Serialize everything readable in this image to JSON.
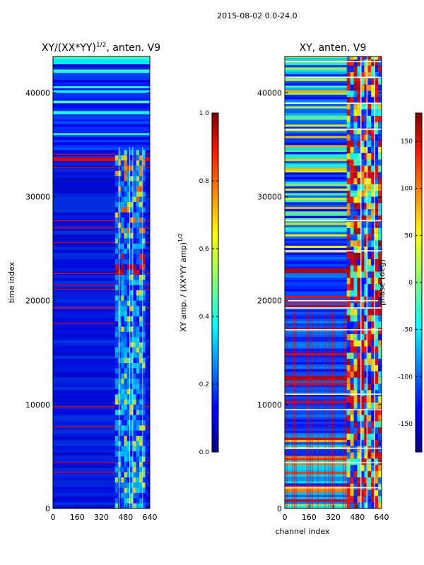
{
  "figure": {
    "suptitle": "2015-08-02 0.0-24.0"
  },
  "chart_data": [
    {
      "type": "heatmap",
      "title_main": "XY/(XX*YY)",
      "title_sup": "1/2",
      "title_suffix": ", anten. V9",
      "xlabel": "",
      "ylabel": "time index",
      "xlim": [
        0,
        640
      ],
      "ylim": [
        0,
        43500
      ],
      "xticks": [
        "0",
        "160",
        "320",
        "480",
        "640"
      ],
      "yticks": [
        "0",
        "10000",
        "20000",
        "30000",
        "40000"
      ],
      "colorbar": {
        "label_main": "XY amp. / (XX*YY amp)",
        "label_sup": "1/2",
        "range": [
          0.0,
          1.0
        ],
        "ticks": [
          "0.0",
          "0.2",
          "0.4",
          "0.6",
          "0.8",
          "1.0"
        ]
      },
      "dominant_value": 0.08,
      "high_rows": [
        3500,
        4400,
        7900,
        9800,
        17800,
        19300,
        21100,
        21500,
        22600,
        25600,
        27000,
        27700,
        32800,
        33600,
        34100
      ],
      "cyan_rows": [
        36000,
        38000,
        40500,
        42000
      ],
      "active_channels": [
        410,
        610
      ]
    },
    {
      "type": "heatmap",
      "title": "XY, anten. V9",
      "xlabel": "channel index",
      "ylabel": "",
      "xlim": [
        0,
        640
      ],
      "ylim": [
        0,
        43500
      ],
      "xticks": [
        "0",
        "160",
        "320",
        "480",
        "640"
      ],
      "yticks": [
        "0",
        "10000",
        "20000",
        "30000",
        "40000"
      ],
      "colorbar": {
        "label": "phase (deg)",
        "range": [
          -180,
          180
        ],
        "ticks": [
          "-150",
          "-100",
          "-50",
          "0",
          "50",
          "100",
          "150"
        ]
      },
      "white_rows": [
        2000,
        4400,
        5800,
        9500,
        11000,
        17200,
        19300,
        20000,
        24800,
        27700,
        36500,
        39000,
        41500,
        43000
      ],
      "active_channels": [
        410,
        640
      ]
    }
  ]
}
